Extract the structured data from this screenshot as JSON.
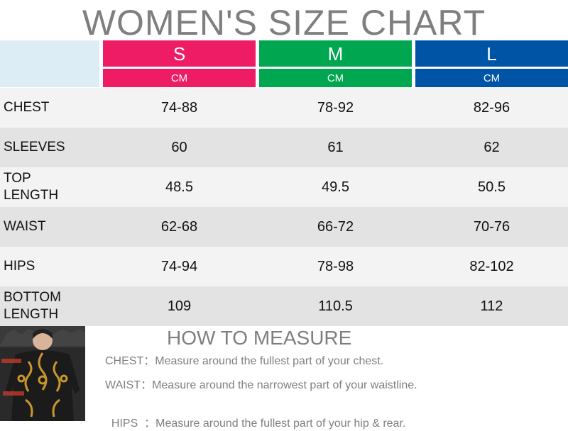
{
  "title": "WOMEN'S SIZE CHART",
  "sizes": [
    {
      "label": "S",
      "unit": "CM",
      "color": "#ee1c64"
    },
    {
      "label": "M",
      "unit": "CM",
      "color": "#00a650"
    },
    {
      "label": "L",
      "unit": "CM",
      "color": "#0054a6"
    }
  ],
  "rows": [
    {
      "label": "CHEST",
      "values": [
        "74-88",
        "78-92",
        "82-96"
      ]
    },
    {
      "label": "SLEEVES",
      "values": [
        "60",
        "61",
        "62"
      ]
    },
    {
      "label": "TOP LENGTH",
      "values": [
        "48.5",
        "49.5",
        "50.5"
      ]
    },
    {
      "label": "WAIST",
      "values": [
        "62-68",
        "66-72",
        "70-76"
      ]
    },
    {
      "label": "HIPS",
      "values": [
        "74-94",
        "78-98",
        "82-102"
      ]
    },
    {
      "label": "BOTTOM LENGTH",
      "values": [
        "109",
        "110.5",
        "112"
      ]
    }
  ],
  "measure": {
    "title": "HOW TO MEASURE",
    "items": [
      {
        "term": "CHEST：",
        "desc": "Measure around the fullest part of your chest."
      },
      {
        "term": "WAIST：",
        "desc": "Measure around the narrowest part of your waistline."
      },
      {
        "term": "HIPS  ：",
        "desc": "Measure around the fullest part of your hip & rear."
      }
    ]
  },
  "photo": {
    "colors": {
      "garment": "#1b1b1b",
      "print": "#c8962c",
      "background": "#2a2a2a"
    }
  }
}
